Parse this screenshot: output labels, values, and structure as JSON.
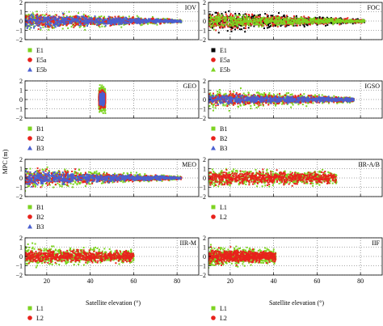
{
  "figure": {
    "ylabel": "MPC (m)",
    "xlabel": "Satellite elevation (°)",
    "xticks": [
      20,
      40,
      60,
      80
    ],
    "yticks": [
      2,
      1,
      0,
      -1,
      -2
    ],
    "colors": {
      "green": "#7dd321",
      "red": "#e8221c",
      "blue": "#4a5fd0",
      "black": "#000000"
    }
  },
  "chart_data": [
    {
      "type": "scatter",
      "title": "IOV",
      "xlim": [
        10,
        90
      ],
      "ylim": [
        -2,
        2
      ],
      "grid": true,
      "series": [
        {
          "name": "E1",
          "color": "#7dd321",
          "x_range": [
            10,
            82
          ],
          "half_width_start": 1.6,
          "half_width_end": 0.3
        },
        {
          "name": "E5a",
          "color": "#e8221c",
          "x_range": [
            10,
            82
          ],
          "half_width_start": 1.3,
          "half_width_end": 0.25
        },
        {
          "name": "E5b",
          "color": "#4a5fd0",
          "x_range": [
            10,
            82
          ],
          "half_width_start": 1.2,
          "half_width_end": 0.2
        }
      ],
      "legend": [
        {
          "label": "E1",
          "color": "#7dd321",
          "marker": "square"
        },
        {
          "label": "E5a",
          "color": "#e8221c",
          "marker": "circle"
        },
        {
          "label": "E5b",
          "color": "#4a5fd0",
          "marker": "triangle"
        }
      ]
    },
    {
      "type": "scatter",
      "title": "FOC",
      "xlim": [
        10,
        90
      ],
      "ylim": [
        -2,
        2
      ],
      "grid": true,
      "series": [
        {
          "name": "E1",
          "color": "#000000",
          "x_range": [
            10,
            82
          ],
          "half_width_start": 1.7,
          "half_width_end": 0.3
        },
        {
          "name": "E5a",
          "color": "#e8221c",
          "x_range": [
            10,
            82
          ],
          "half_width_start": 1.4,
          "half_width_end": 0.25
        },
        {
          "name": "E5b",
          "color": "#7dd321",
          "x_range": [
            10,
            82
          ],
          "half_width_start": 1.3,
          "half_width_end": 0.2
        }
      ],
      "legend": [
        {
          "label": "E1",
          "color": "#000000",
          "marker": "square"
        },
        {
          "label": "E5a",
          "color": "#e8221c",
          "marker": "circle"
        },
        {
          "label": "E5b",
          "color": "#7dd321",
          "marker": "triangle"
        }
      ]
    },
    {
      "type": "scatter",
      "title": "GEO",
      "xlim": [
        10,
        90
      ],
      "ylim": [
        -2,
        2
      ],
      "grid": true,
      "series": [
        {
          "name": "B1",
          "color": "#7dd321",
          "x_range": [
            44,
            47
          ],
          "half_width_start": 1.9,
          "half_width_end": 1.9
        },
        {
          "name": "B2",
          "color": "#e8221c",
          "x_range": [
            44,
            47
          ],
          "half_width_start": 1.2,
          "half_width_end": 1.2
        },
        {
          "name": "B3",
          "color": "#4a5fd0",
          "x_range": [
            44.5,
            46.5
          ],
          "half_width_start": 0.9,
          "half_width_end": 0.9
        }
      ],
      "legend": [
        {
          "label": "B1",
          "color": "#7dd321",
          "marker": "square"
        },
        {
          "label": "B2",
          "color": "#e8221c",
          "marker": "circle"
        },
        {
          "label": "B3",
          "color": "#4a5fd0",
          "marker": "triangle"
        }
      ]
    },
    {
      "type": "scatter",
      "title": "IGSO",
      "xlim": [
        10,
        90
      ],
      "ylim": [
        -2,
        2
      ],
      "grid": true,
      "series": [
        {
          "name": "B1",
          "color": "#7dd321",
          "x_range": [
            10,
            77
          ],
          "half_width_start": 1.6,
          "half_width_end": 0.5
        },
        {
          "name": "B2",
          "color": "#e8221c",
          "x_range": [
            10,
            77
          ],
          "half_width_start": 1.1,
          "half_width_end": 0.4
        },
        {
          "name": "B3",
          "color": "#4a5fd0",
          "x_range": [
            10,
            77
          ],
          "half_width_start": 0.8,
          "half_width_end": 0.35
        }
      ],
      "legend": [
        {
          "label": "B1",
          "color": "#7dd321",
          "marker": "square"
        },
        {
          "label": "B2",
          "color": "#e8221c",
          "marker": "circle"
        },
        {
          "label": "B3",
          "color": "#4a5fd0",
          "marker": "triangle"
        }
      ]
    },
    {
      "type": "scatter",
      "title": "MEO",
      "xlim": [
        10,
        90
      ],
      "ylim": [
        -2,
        2
      ],
      "grid": true,
      "series": [
        {
          "name": "B1",
          "color": "#7dd321",
          "x_range": [
            10,
            82
          ],
          "half_width_start": 1.8,
          "half_width_end": 0.3
        },
        {
          "name": "B2",
          "color": "#e8221c",
          "x_range": [
            10,
            82
          ],
          "half_width_start": 1.4,
          "half_width_end": 0.25
        },
        {
          "name": "B3",
          "color": "#4a5fd0",
          "x_range": [
            10,
            82
          ],
          "half_width_start": 1.2,
          "half_width_end": 0.2
        }
      ],
      "legend": [
        {
          "label": "B1",
          "color": "#7dd321",
          "marker": "square"
        },
        {
          "label": "B2",
          "color": "#e8221c",
          "marker": "circle"
        },
        {
          "label": "B3",
          "color": "#4a5fd0",
          "marker": "triangle"
        }
      ]
    },
    {
      "type": "scatter",
      "title": "IIR-A/B",
      "xlim": [
        10,
        90
      ],
      "ylim": [
        -2,
        2
      ],
      "grid": true,
      "series": [
        {
          "name": "L1",
          "color": "#7dd321",
          "x_range": [
            10,
            69
          ],
          "half_width_start": 1.5,
          "half_width_end": 1.0
        },
        {
          "name": "L2",
          "color": "#e8221c",
          "x_range": [
            10,
            69
          ],
          "half_width_start": 1.2,
          "half_width_end": 0.9
        }
      ],
      "legend": [
        {
          "label": "L1",
          "color": "#7dd321",
          "marker": "square"
        },
        {
          "label": "L2",
          "color": "#e8221c",
          "marker": "circle"
        }
      ]
    },
    {
      "type": "scatter",
      "title": "IIR-M",
      "xlim": [
        10,
        90
      ],
      "ylim": [
        -2,
        2
      ],
      "grid": true,
      "series": [
        {
          "name": "L1",
          "color": "#7dd321",
          "x_range": [
            10,
            60
          ],
          "half_width_start": 1.7,
          "half_width_end": 1.0
        },
        {
          "name": "L2",
          "color": "#e8221c",
          "x_range": [
            10,
            60
          ],
          "half_width_start": 1.1,
          "half_width_end": 0.8
        }
      ],
      "legend": [
        {
          "label": "L1",
          "color": "#7dd321",
          "marker": "square"
        },
        {
          "label": "L2",
          "color": "#e8221c",
          "marker": "circle"
        }
      ]
    },
    {
      "type": "scatter",
      "title": "IIF",
      "xlim": [
        10,
        90
      ],
      "ylim": [
        -2,
        2
      ],
      "grid": true,
      "series": [
        {
          "name": "L1",
          "color": "#7dd321",
          "x_range": [
            10,
            41
          ],
          "half_width_start": 1.7,
          "half_width_end": 1.2
        },
        {
          "name": "L2",
          "color": "#e8221c",
          "x_range": [
            10,
            41
          ],
          "half_width_start": 1.2,
          "half_width_end": 0.9
        }
      ],
      "legend": [
        {
          "label": "L1",
          "color": "#7dd321",
          "marker": "square"
        },
        {
          "label": "L2",
          "color": "#e8221c",
          "marker": "circle"
        }
      ]
    }
  ]
}
